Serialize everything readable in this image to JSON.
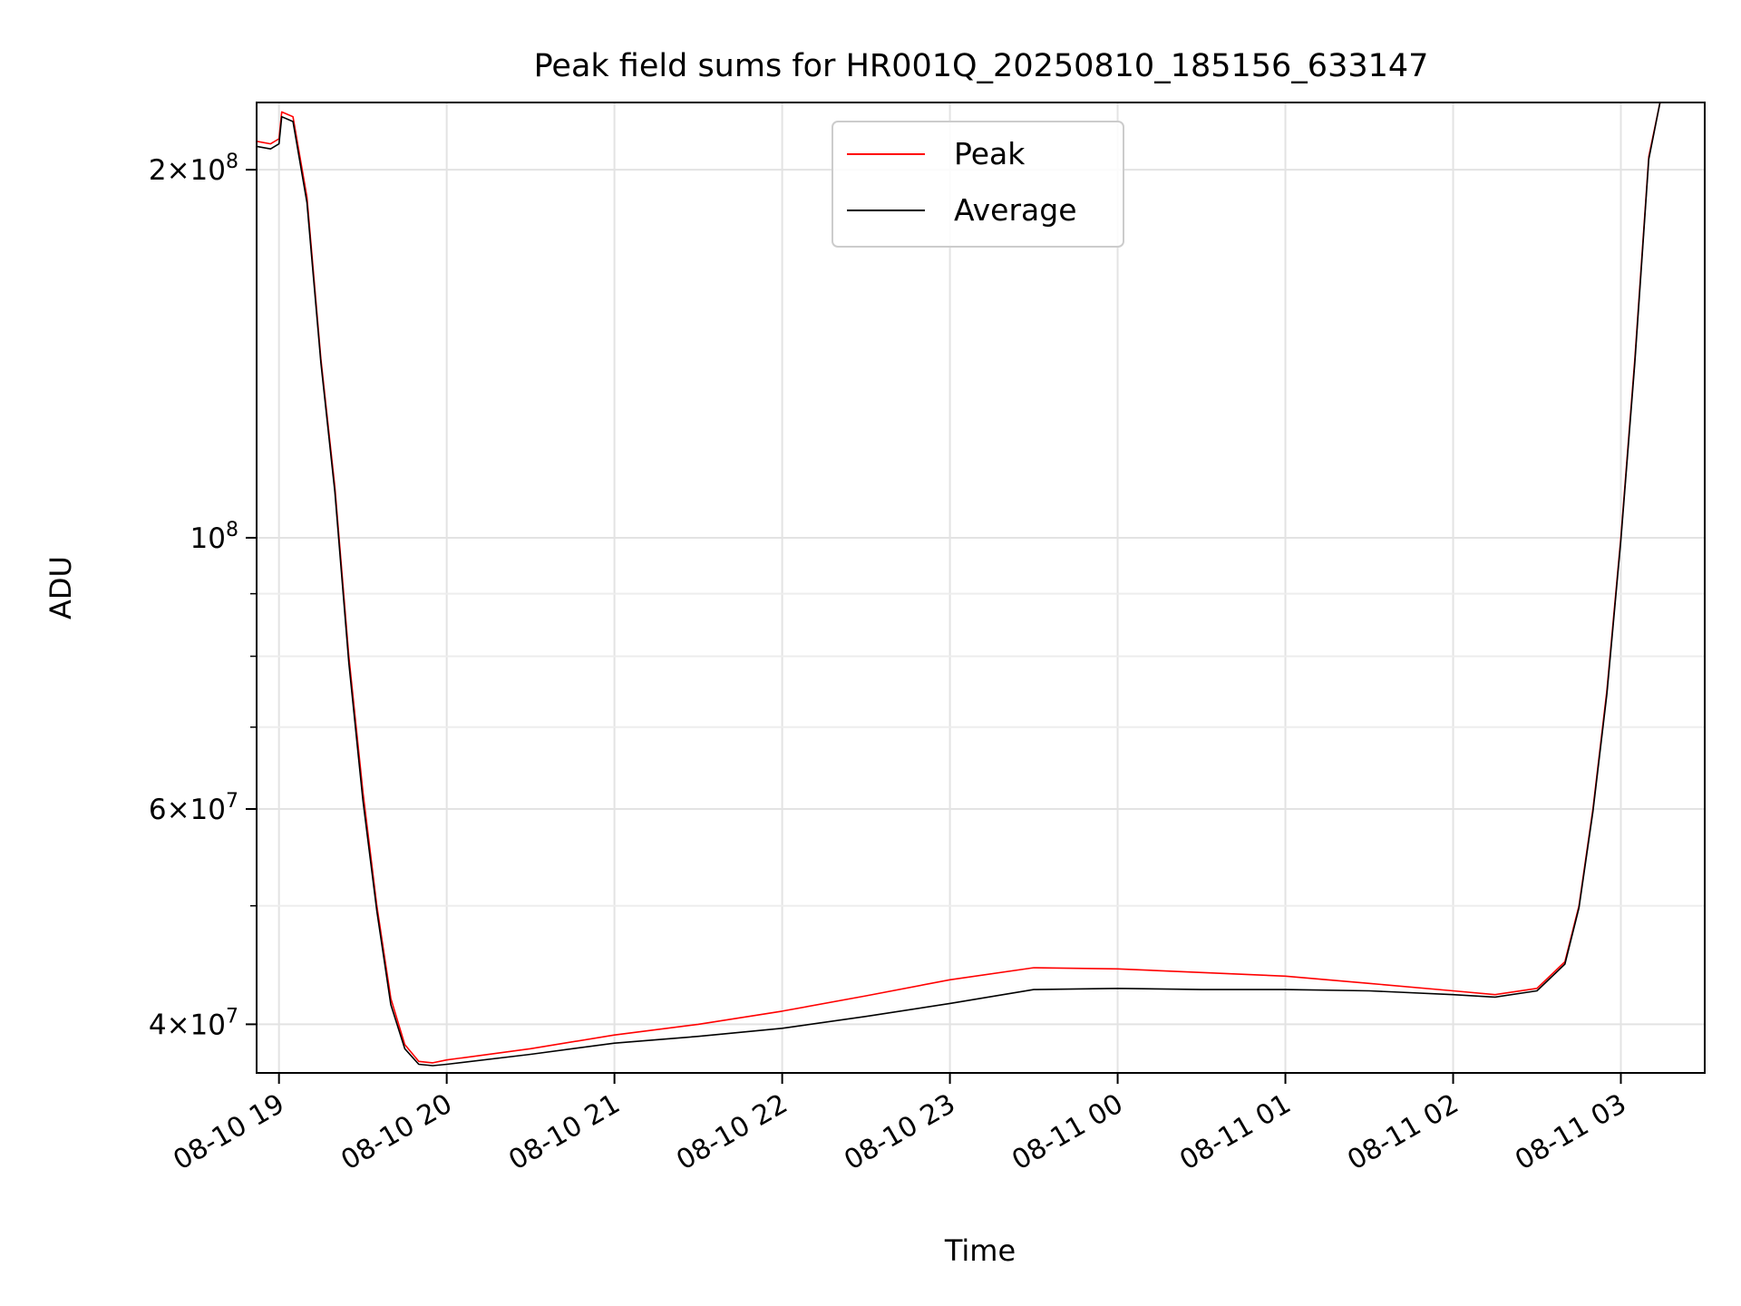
{
  "chart_data": {
    "type": "line",
    "title": "Peak field sums for HR001Q_20250810_185156_633147",
    "xlabel": "Time",
    "ylabel": "ADU",
    "xscale": "time",
    "yscale": "log",
    "xlim": [
      "2025-08-10 18:52",
      "2025-08-11 03:30"
    ],
    "ylim": [
      36500000,
      227000000
    ],
    "grid": true,
    "legend_position": "top-center",
    "x_ticks": [
      {
        "value": "2025-08-10 19:00",
        "label": "08-10 19"
      },
      {
        "value": "2025-08-10 20:00",
        "label": "08-10 20"
      },
      {
        "value": "2025-08-10 21:00",
        "label": "08-10 21"
      },
      {
        "value": "2025-08-10 22:00",
        "label": "08-10 22"
      },
      {
        "value": "2025-08-10 23:00",
        "label": "08-10 23"
      },
      {
        "value": "2025-08-11 00:00",
        "label": "08-11 00"
      },
      {
        "value": "2025-08-11 01:00",
        "label": "08-11 01"
      },
      {
        "value": "2025-08-11 02:00",
        "label": "08-11 02"
      },
      {
        "value": "2025-08-11 03:00",
        "label": "08-11 03"
      }
    ],
    "y_major_ticks": [
      {
        "value": 40000000,
        "mantissa": "4",
        "exponent": "7"
      },
      {
        "value": 60000000,
        "mantissa": "6",
        "exponent": "7"
      },
      {
        "value": 100000000,
        "mantissa": "",
        "exponent": "8"
      },
      {
        "value": 200000000,
        "mantissa": "2",
        "exponent": "8"
      }
    ],
    "y_minor_ticks": [
      50000000,
      70000000,
      80000000,
      90000000,
      300000000
    ],
    "series": [
      {
        "name": "Peak",
        "color": "#ff0000",
        "points": [
          [
            "2025-08-10 18:52",
            211000000
          ],
          [
            "2025-08-10 18:57",
            210000000
          ],
          [
            "2025-08-10 19:00",
            212000000
          ],
          [
            "2025-08-10 19:01",
            223000000
          ],
          [
            "2025-08-10 19:05",
            221000000
          ],
          [
            "2025-08-10 19:10",
            190000000
          ],
          [
            "2025-08-10 19:15",
            140000000
          ],
          [
            "2025-08-10 19:20",
            110000000
          ],
          [
            "2025-08-10 19:25",
            80000000
          ],
          [
            "2025-08-10 19:30",
            62000000
          ],
          [
            "2025-08-10 19:35",
            50000000
          ],
          [
            "2025-08-10 19:40",
            42000000
          ],
          [
            "2025-08-10 19:45",
            38500000
          ],
          [
            "2025-08-10 19:50",
            37300000
          ],
          [
            "2025-08-10 19:55",
            37200000
          ],
          [
            "2025-08-10 20:00",
            37400000
          ],
          [
            "2025-08-10 20:30",
            38200000
          ],
          [
            "2025-08-10 21:00",
            39200000
          ],
          [
            "2025-08-10 21:30",
            40000000
          ],
          [
            "2025-08-10 22:00",
            41000000
          ],
          [
            "2025-08-10 22:30",
            42200000
          ],
          [
            "2025-08-10 23:00",
            43500000
          ],
          [
            "2025-08-10 23:30",
            44500000
          ],
          [
            "2025-08-11 00:00",
            44400000
          ],
          [
            "2025-08-11 00:30",
            44100000
          ],
          [
            "2025-08-11 01:00",
            43800000
          ],
          [
            "2025-08-11 01:30",
            43200000
          ],
          [
            "2025-08-11 02:00",
            42600000
          ],
          [
            "2025-08-11 02:15",
            42300000
          ],
          [
            "2025-08-11 02:30",
            42800000
          ],
          [
            "2025-08-11 02:40",
            45000000
          ],
          [
            "2025-08-11 02:45",
            50000000
          ],
          [
            "2025-08-11 02:50",
            60000000
          ],
          [
            "2025-08-11 02:55",
            75000000
          ],
          [
            "2025-08-11 03:00",
            100000000
          ],
          [
            "2025-08-11 03:05",
            140000000
          ],
          [
            "2025-08-11 03:10",
            205000000
          ],
          [
            "2025-08-11 03:14",
            227000000
          ]
        ]
      },
      {
        "name": "Average",
        "color": "#000000",
        "points": [
          [
            "2025-08-10 18:52",
            209000000
          ],
          [
            "2025-08-10 18:57",
            208000000
          ],
          [
            "2025-08-10 19:00",
            210000000
          ],
          [
            "2025-08-10 19:01",
            221000000
          ],
          [
            "2025-08-10 19:05",
            219000000
          ],
          [
            "2025-08-10 19:10",
            188000000
          ],
          [
            "2025-08-10 19:15",
            139000000
          ],
          [
            "2025-08-10 19:20",
            109000000
          ],
          [
            "2025-08-10 19:25",
            79000000
          ],
          [
            "2025-08-10 19:30",
            61000000
          ],
          [
            "2025-08-10 19:35",
            49500000
          ],
          [
            "2025-08-10 19:40",
            41500000
          ],
          [
            "2025-08-10 19:45",
            38200000
          ],
          [
            "2025-08-10 19:50",
            37100000
          ],
          [
            "2025-08-10 19:55",
            37000000
          ],
          [
            "2025-08-10 20:00",
            37100000
          ],
          [
            "2025-08-10 20:30",
            37800000
          ],
          [
            "2025-08-10 21:00",
            38600000
          ],
          [
            "2025-08-10 21:30",
            39100000
          ],
          [
            "2025-08-10 22:00",
            39700000
          ],
          [
            "2025-08-10 22:30",
            40600000
          ],
          [
            "2025-08-10 23:00",
            41600000
          ],
          [
            "2025-08-10 23:30",
            42700000
          ],
          [
            "2025-08-11 00:00",
            42800000
          ],
          [
            "2025-08-11 00:30",
            42700000
          ],
          [
            "2025-08-11 01:00",
            42700000
          ],
          [
            "2025-08-11 01:30",
            42600000
          ],
          [
            "2025-08-11 02:00",
            42300000
          ],
          [
            "2025-08-11 02:15",
            42100000
          ],
          [
            "2025-08-11 02:30",
            42600000
          ],
          [
            "2025-08-11 02:40",
            44800000
          ],
          [
            "2025-08-11 02:45",
            49800000
          ],
          [
            "2025-08-11 02:50",
            59700000
          ],
          [
            "2025-08-11 02:55",
            74500000
          ],
          [
            "2025-08-11 03:00",
            99500000
          ],
          [
            "2025-08-11 03:05",
            139000000
          ],
          [
            "2025-08-11 03:10",
            204000000
          ],
          [
            "2025-08-11 03:14",
            227000000
          ]
        ]
      }
    ]
  }
}
